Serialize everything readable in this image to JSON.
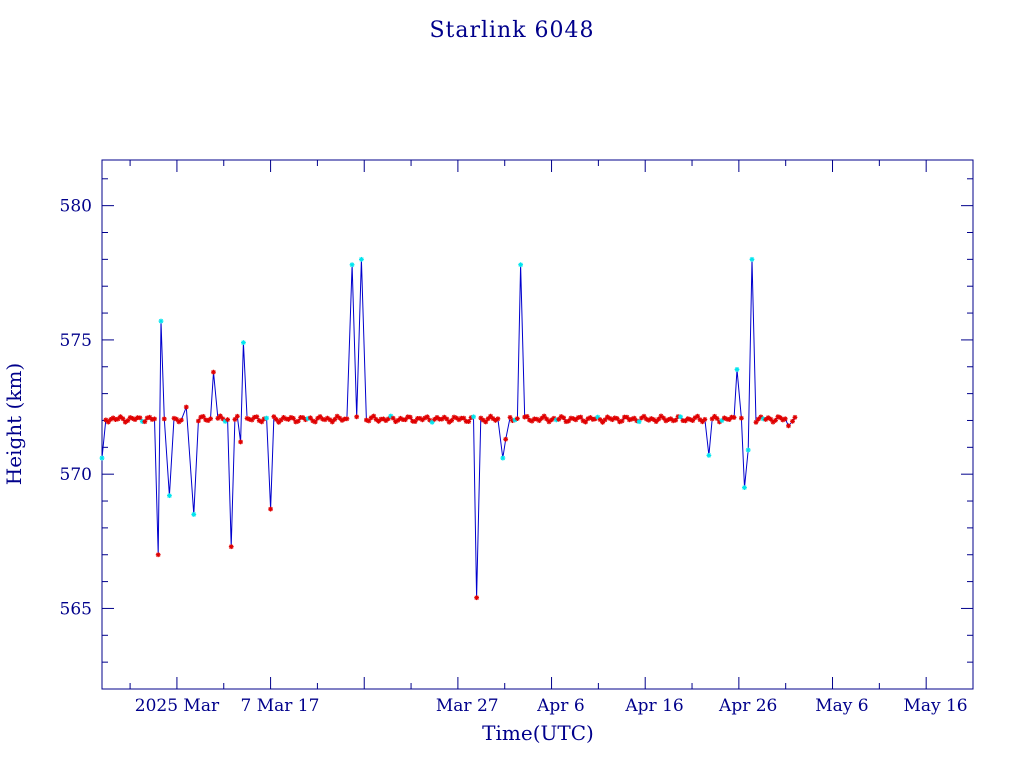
{
  "chart_data": {
    "type": "line",
    "title": "Starlink 6048",
    "xlabel": "Time(UTC)",
    "ylabel": "Height (km)",
    "xlim": [
      "2025-02-16",
      "2025-05-20"
    ],
    "ylim": [
      562,
      581.7
    ],
    "x_ticks": [
      {
        "date": "2025-02-24",
        "label": "2025 Mar"
      },
      {
        "date": "2025-03-07",
        "label": "7 Mar 17"
      },
      {
        "date": "2025-03-17",
        "label": ""
      },
      {
        "date": "2025-03-27",
        "label": "Mar 27"
      },
      {
        "date": "2025-04-06",
        "label": "Apr  6"
      },
      {
        "date": "2025-04-16",
        "label": "Apr 16"
      },
      {
        "date": "2025-04-26",
        "label": "Apr 26"
      },
      {
        "date": "2025-05-06",
        "label": "May  6"
      },
      {
        "date": "2025-05-16",
        "label": "May 16"
      }
    ],
    "y_ticks": [
      565,
      570,
      575,
      580
    ],
    "line_color": "#0000cd",
    "marker_colors": {
      "red": "#e00000",
      "cyan": "#00e5ee"
    },
    "baseline_km": 572.05,
    "baseline_range": [
      "2025-02-16",
      "2025-05-01"
    ],
    "excursions": [
      {
        "date": "2025-02-16",
        "value": 570.6,
        "marker": "cyan"
      },
      {
        "date": "2025-02-22",
        "value": 567.0,
        "marker": "red"
      },
      {
        "date": "2025-02-22.3",
        "value": 575.7,
        "marker": "cyan"
      },
      {
        "date": "2025-02-23.2",
        "value": 569.2,
        "marker": "cyan"
      },
      {
        "date": "2025-02-25",
        "value": 572.5,
        "marker": "red"
      },
      {
        "date": "2025-02-25.8",
        "value": 568.5,
        "marker": "cyan"
      },
      {
        "date": "2025-02-27.9",
        "value": 573.8,
        "marker": "red"
      },
      {
        "date": "2025-03-01.8",
        "value": 567.3,
        "marker": "red"
      },
      {
        "date": "2025-03-02.8",
        "value": 571.2,
        "marker": "red"
      },
      {
        "date": "2025-03-03.1",
        "value": 574.9,
        "marker": "cyan"
      },
      {
        "date": "2025-03-06",
        "value": 568.7,
        "marker": "red"
      },
      {
        "date": "2025-03-14.7",
        "value": 577.8,
        "marker": "cyan"
      },
      {
        "date": "2025-03-15.7",
        "value": 578.0,
        "marker": "cyan"
      },
      {
        "date": "2025-03-28",
        "value": 565.4,
        "marker": "red"
      },
      {
        "date": "2025-03-30.8",
        "value": 570.6,
        "marker": "cyan"
      },
      {
        "date": "2025-03-31.1",
        "value": 571.3,
        "marker": "red"
      },
      {
        "date": "2025-04-01.7",
        "value": 577.8,
        "marker": "cyan"
      },
      {
        "date": "2025-04-21.8",
        "value": 570.7,
        "marker": "cyan"
      },
      {
        "date": "2025-04-24.8",
        "value": 573.9,
        "marker": "cyan"
      },
      {
        "date": "2025-04-25.6",
        "value": 569.5,
        "marker": "cyan"
      },
      {
        "date": "2025-04-26",
        "value": 570.9,
        "marker": "cyan"
      },
      {
        "date": "2025-04-26.4",
        "value": 578.0,
        "marker": "cyan"
      },
      {
        "date": "2025-04-30.3",
        "value": 571.8,
        "marker": "red"
      }
    ]
  }
}
